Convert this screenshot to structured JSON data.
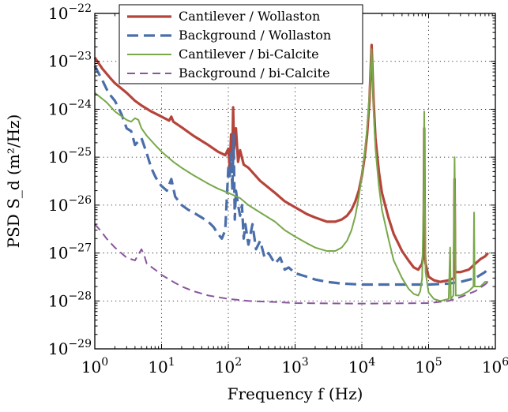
{
  "chart_data": {
    "type": "line",
    "xscale": "log",
    "yscale": "log",
    "xlim": [
      1,
      1000000
    ],
    "ylim": [
      1e-29,
      1e-22
    ],
    "grid": true,
    "legend_position": "top-center",
    "xlabel": "Frequency f (Hz)",
    "ylabel": "PSD S_d (m²/Hz)",
    "x_ticks": [
      {
        "value": 1,
        "base": "10",
        "exp": "0"
      },
      {
        "value": 10,
        "base": "10",
        "exp": "1"
      },
      {
        "value": 100,
        "base": "10",
        "exp": "2"
      },
      {
        "value": 1000,
        "base": "10",
        "exp": "3"
      },
      {
        "value": 10000,
        "base": "10",
        "exp": "4"
      },
      {
        "value": 100000,
        "base": "10",
        "exp": "5"
      },
      {
        "value": 1000000,
        "base": "10",
        "exp": "6"
      }
    ],
    "y_ticks": [
      {
        "value": 1e-29,
        "base": "10",
        "exp": "−29"
      },
      {
        "value": 1e-28,
        "base": "10",
        "exp": "−28"
      },
      {
        "value": 1e-27,
        "base": "10",
        "exp": "−27"
      },
      {
        "value": 1e-26,
        "base": "10",
        "exp": "−26"
      },
      {
        "value": 1e-25,
        "base": "10",
        "exp": "−25"
      },
      {
        "value": 1e-24,
        "base": "10",
        "exp": "−24"
      },
      {
        "value": 1e-23,
        "base": "10",
        "exp": "−23"
      },
      {
        "value": 1e-22,
        "base": "10",
        "exp": "−22"
      }
    ],
    "series": [
      {
        "name": "Cantilever / Wollaston",
        "color": "#b5443a",
        "line_style": "solid",
        "line_width": 3.2,
        "points": [
          [
            1,
            1.2e-23
          ],
          [
            1.3,
            7e-24
          ],
          [
            1.7,
            4.5e-24
          ],
          [
            2,
            3.5e-24
          ],
          [
            3,
            2.2e-24
          ],
          [
            4,
            1.5e-24
          ],
          [
            5,
            1.2e-24
          ],
          [
            7,
            9e-25
          ],
          [
            10,
            7e-25
          ],
          [
            13,
            5.8e-25
          ],
          [
            14,
            7e-25
          ],
          [
            15,
            5.5e-25
          ],
          [
            20,
            4.2e-25
          ],
          [
            30,
            2.8e-25
          ],
          [
            50,
            1.8e-25
          ],
          [
            70,
            1.3e-25
          ],
          [
            90,
            1.1e-25
          ],
          [
            100,
            1.5e-25
          ],
          [
            105,
            6e-26
          ],
          [
            110,
            3e-25
          ],
          [
            115,
            1e-25
          ],
          [
            118,
            1.1e-24
          ],
          [
            122,
            1.5e-25
          ],
          [
            130,
            4e-25
          ],
          [
            140,
            8e-26
          ],
          [
            150,
            1.4e-25
          ],
          [
            170,
            7e-26
          ],
          [
            200,
            6e-26
          ],
          [
            300,
            3.2e-26
          ],
          [
            500,
            1.8e-26
          ],
          [
            700,
            1.2e-26
          ],
          [
            1000,
            9e-27
          ],
          [
            1500,
            6.5e-27
          ],
          [
            2000,
            5.5e-27
          ],
          [
            3000,
            4.5e-27
          ],
          [
            4000,
            4.5e-27
          ],
          [
            5000,
            5e-27
          ],
          [
            6000,
            6e-27
          ],
          [
            7000,
            8e-27
          ],
          [
            8000,
            1.2e-26
          ],
          [
            9000,
            2e-26
          ],
          [
            10000,
            4e-26
          ],
          [
            11000,
            1e-25
          ],
          [
            12000,
            3e-25
          ],
          [
            13000,
            1.5e-24
          ],
          [
            14000,
            2.2e-23
          ],
          [
            15000,
            1.5e-24
          ],
          [
            16000,
            2.5e-25
          ],
          [
            18000,
            5e-26
          ],
          [
            20000,
            1.8e-26
          ],
          [
            25000,
            5.5e-27
          ],
          [
            30000,
            2.5e-27
          ],
          [
            40000,
            1.1e-27
          ],
          [
            50000,
            7e-28
          ],
          [
            60000,
            5e-28
          ],
          [
            70000,
            4.5e-28
          ],
          [
            80000,
            6e-28
          ],
          [
            84000,
            1e-27
          ],
          [
            86000,
            4e-25
          ],
          [
            88000,
            1e-27
          ],
          [
            90000,
            6e-28
          ],
          [
            100000,
            3.2e-28
          ],
          [
            120000,
            2.7e-28
          ],
          [
            150000,
            2.5e-28
          ],
          [
            200000,
            2.7e-28
          ],
          [
            240000,
            3e-28
          ],
          [
            245000,
            3.5e-26
          ],
          [
            250000,
            4e-28
          ],
          [
            300000,
            4e-28
          ],
          [
            400000,
            4.5e-28
          ],
          [
            500000,
            6e-28
          ],
          [
            600000,
            7.5e-28
          ],
          [
            700000,
            8.5e-28
          ],
          [
            780000,
            1e-27
          ]
        ]
      },
      {
        "name": "Background / Wollaston",
        "color": "#4a6ea9",
        "line_style": "dashed",
        "line_width": 3.2,
        "points": [
          [
            1,
            8e-24
          ],
          [
            1.3,
            4e-24
          ],
          [
            1.6,
            2.2e-24
          ],
          [
            2,
            1.5e-24
          ],
          [
            2.5,
            8e-25
          ],
          [
            3,
            4e-25
          ],
          [
            3.5,
            3.5e-25
          ],
          [
            4,
            1.8e-25
          ],
          [
            5,
            2.5e-25
          ],
          [
            6,
            1.2e-25
          ],
          [
            7,
            6e-26
          ],
          [
            8,
            4e-26
          ],
          [
            9,
            3e-26
          ],
          [
            10,
            2.5e-26
          ],
          [
            12,
            2e-26
          ],
          [
            14,
            3.5e-26
          ],
          [
            16,
            1.5e-26
          ],
          [
            20,
            1e-26
          ],
          [
            25,
            8e-27
          ],
          [
            30,
            7e-27
          ],
          [
            40,
            5.5e-27
          ],
          [
            50,
            4.5e-27
          ],
          [
            60,
            3.5e-27
          ],
          [
            70,
            2.5e-27
          ],
          [
            80,
            2e-27
          ],
          [
            90,
            3e-27
          ],
          [
            100,
            6e-26
          ],
          [
            105,
            4e-26
          ],
          [
            110,
            1.2e-25
          ],
          [
            115,
            2e-26
          ],
          [
            120,
            3e-25
          ],
          [
            125,
            5e-27
          ],
          [
            130,
            2e-26
          ],
          [
            140,
            1e-26
          ],
          [
            150,
            6e-27
          ],
          [
            160,
            1e-26
          ],
          [
            170,
            2e-27
          ],
          [
            180,
            4e-27
          ],
          [
            200,
            1.5e-27
          ],
          [
            230,
            4e-27
          ],
          [
            260,
            1.2e-27
          ],
          [
            300,
            1.8e-27
          ],
          [
            350,
            8e-28
          ],
          [
            400,
            1e-27
          ],
          [
            500,
            6e-28
          ],
          [
            600,
            8e-28
          ],
          [
            700,
            4.5e-28
          ],
          [
            800,
            5e-28
          ],
          [
            1000,
            3.8e-28
          ],
          [
            1500,
            3.2e-28
          ],
          [
            2000,
            2.8e-28
          ],
          [
            3000,
            2.5e-28
          ],
          [
            5000,
            2.3e-28
          ],
          [
            10000,
            2.2e-28
          ],
          [
            20000,
            2.2e-28
          ],
          [
            50000,
            2.2e-28
          ],
          [
            100000,
            2.2e-28
          ],
          [
            200000,
            2.3e-28
          ],
          [
            300000,
            2.5e-28
          ],
          [
            500000,
            3e-28
          ],
          [
            700000,
            4e-28
          ],
          [
            800000,
            5e-28
          ]
        ]
      },
      {
        "name": "Cantilever / bi-Calcite",
        "color": "#78a84a",
        "line_style": "solid",
        "line_width": 2,
        "points": [
          [
            1,
            2.2e-24
          ],
          [
            1.5,
            1.4e-24
          ],
          [
            2,
            9e-25
          ],
          [
            3,
            6e-25
          ],
          [
            3.5,
            5.5e-25
          ],
          [
            4,
            6.5e-25
          ],
          [
            4.5,
            6e-25
          ],
          [
            5,
            4e-25
          ],
          [
            6,
            2.8e-25
          ],
          [
            8,
            1.8e-25
          ],
          [
            10,
            1.3e-25
          ],
          [
            15,
            8e-26
          ],
          [
            20,
            6e-26
          ],
          [
            30,
            4.2e-26
          ],
          [
            50,
            2.8e-26
          ],
          [
            70,
            2.2e-26
          ],
          [
            100,
            1.8e-26
          ],
          [
            150,
            1.4e-26
          ],
          [
            200,
            1e-26
          ],
          [
            300,
            7e-27
          ],
          [
            500,
            4.5e-27
          ],
          [
            700,
            3e-27
          ],
          [
            1000,
            2.2e-27
          ],
          [
            1500,
            1.6e-27
          ],
          [
            2000,
            1.3e-27
          ],
          [
            3000,
            1.1e-27
          ],
          [
            4000,
            1.1e-27
          ],
          [
            5000,
            1.3e-27
          ],
          [
            6000,
            1.8e-27
          ],
          [
            7000,
            3e-27
          ],
          [
            8000,
            6e-27
          ],
          [
            9000,
            1.5e-26
          ],
          [
            10000,
            4e-26
          ],
          [
            11000,
            1.2e-25
          ],
          [
            12000,
            4e-25
          ],
          [
            13000,
            2e-24
          ],
          [
            14000,
            1.8e-23
          ],
          [
            15000,
            1e-24
          ],
          [
            16000,
            1.5e-25
          ],
          [
            18000,
            2.5e-26
          ],
          [
            20000,
            8e-27
          ],
          [
            25000,
            2e-27
          ],
          [
            30000,
            7e-28
          ],
          [
            40000,
            3e-28
          ],
          [
            50000,
            1.8e-28
          ],
          [
            60000,
            1.4e-28
          ],
          [
            70000,
            1.3e-28
          ],
          [
            75000,
            1.6e-28
          ],
          [
            80000,
            3e-28
          ],
          [
            84000,
            1e-26
          ],
          [
            86000,
            9e-25
          ],
          [
            88000,
            1e-26
          ],
          [
            90000,
            4e-28
          ],
          [
            100000,
            1.5e-28
          ],
          [
            120000,
            1.1e-28
          ],
          [
            150000,
            1e-28
          ],
          [
            200000,
            1.1e-28
          ],
          [
            210000,
            1.3e-27
          ],
          [
            215000,
            1.1e-28
          ],
          [
            235000,
            1.3e-28
          ],
          [
            245000,
            1e-25
          ],
          [
            255000,
            1.3e-28
          ],
          [
            300000,
            1.3e-28
          ],
          [
            400000,
            1.6e-28
          ],
          [
            470000,
            2e-28
          ],
          [
            480000,
            7e-27
          ],
          [
            490000,
            2e-28
          ],
          [
            550000,
            2e-28
          ],
          [
            600000,
            2e-28
          ],
          [
            700000,
            2.5e-28
          ],
          [
            780000,
            2.5e-28
          ]
        ]
      },
      {
        "name": "Background / bi-Calcite",
        "color": "#8a559e",
        "line_style": "dashed",
        "line_width": 2,
        "points": [
          [
            1,
            4e-27
          ],
          [
            1.2,
            3e-27
          ],
          [
            1.5,
            2e-27
          ],
          [
            2,
            1.3e-27
          ],
          [
            3,
            8e-28
          ],
          [
            4,
            7e-28
          ],
          [
            5,
            1.2e-27
          ],
          [
            5.5,
            9e-28
          ],
          [
            6,
            6e-28
          ],
          [
            8,
            4.5e-28
          ],
          [
            10,
            3.5e-28
          ],
          [
            15,
            2.5e-28
          ],
          [
            20,
            2e-28
          ],
          [
            30,
            1.6e-28
          ],
          [
            50,
            1.3e-28
          ],
          [
            70,
            1.2e-28
          ],
          [
            100,
            1.1e-28
          ],
          [
            200,
            1e-28
          ],
          [
            500,
            9.5e-29
          ],
          [
            1000,
            9e-29
          ],
          [
            10000,
            8.8e-29
          ],
          [
            100000,
            9e-29
          ],
          [
            200000,
            1e-28
          ],
          [
            300000,
            1.2e-28
          ],
          [
            500000,
            1.6e-28
          ],
          [
            700000,
            2.2e-28
          ],
          [
            780000,
            2.5e-28
          ]
        ]
      }
    ]
  }
}
